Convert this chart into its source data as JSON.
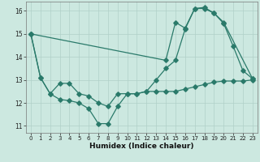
{
  "xlabel": "Humidex (Indice chaleur)",
  "bg_color": "#cce8e0",
  "line_color": "#2a7a6a",
  "grid_color": "#b0d0c8",
  "xlim": [
    -0.5,
    23.5
  ],
  "ylim": [
    10.7,
    16.4
  ],
  "yticks": [
    11,
    12,
    13,
    14,
    15,
    16
  ],
  "xticks": [
    0,
    1,
    2,
    3,
    4,
    5,
    6,
    7,
    8,
    9,
    10,
    11,
    12,
    13,
    14,
    15,
    16,
    17,
    18,
    19,
    20,
    21,
    22,
    23
  ],
  "line1_x": [
    0,
    1,
    2,
    3,
    4,
    5,
    6,
    7,
    8,
    9,
    10,
    11,
    12,
    13,
    14,
    15,
    16,
    17,
    18,
    19,
    20,
    21,
    22,
    23
  ],
  "line1_y": [
    15.0,
    13.1,
    12.4,
    12.15,
    12.1,
    12.0,
    11.75,
    11.1,
    11.1,
    11.85,
    12.4,
    12.4,
    12.5,
    12.5,
    12.5,
    12.5,
    12.6,
    12.7,
    12.8,
    12.9,
    12.95,
    12.95,
    12.95,
    13.0
  ],
  "line2_x": [
    0,
    1,
    2,
    3,
    4,
    5,
    6,
    7,
    8,
    9,
    10,
    11,
    12,
    13,
    14,
    15,
    16,
    17,
    18,
    19,
    20,
    21,
    22,
    23
  ],
  "line2_y": [
    15.0,
    13.1,
    12.4,
    12.85,
    12.85,
    12.4,
    12.3,
    12.0,
    11.85,
    12.4,
    12.4,
    12.4,
    12.5,
    13.0,
    13.5,
    13.85,
    15.2,
    16.1,
    16.1,
    15.9,
    15.45,
    14.45,
    13.4,
    13.05
  ],
  "line3_x": [
    0,
    14,
    15,
    16,
    17,
    18,
    19,
    20,
    23
  ],
  "line3_y": [
    15.0,
    13.85,
    15.5,
    15.25,
    16.1,
    16.15,
    15.9,
    15.5,
    13.05
  ]
}
